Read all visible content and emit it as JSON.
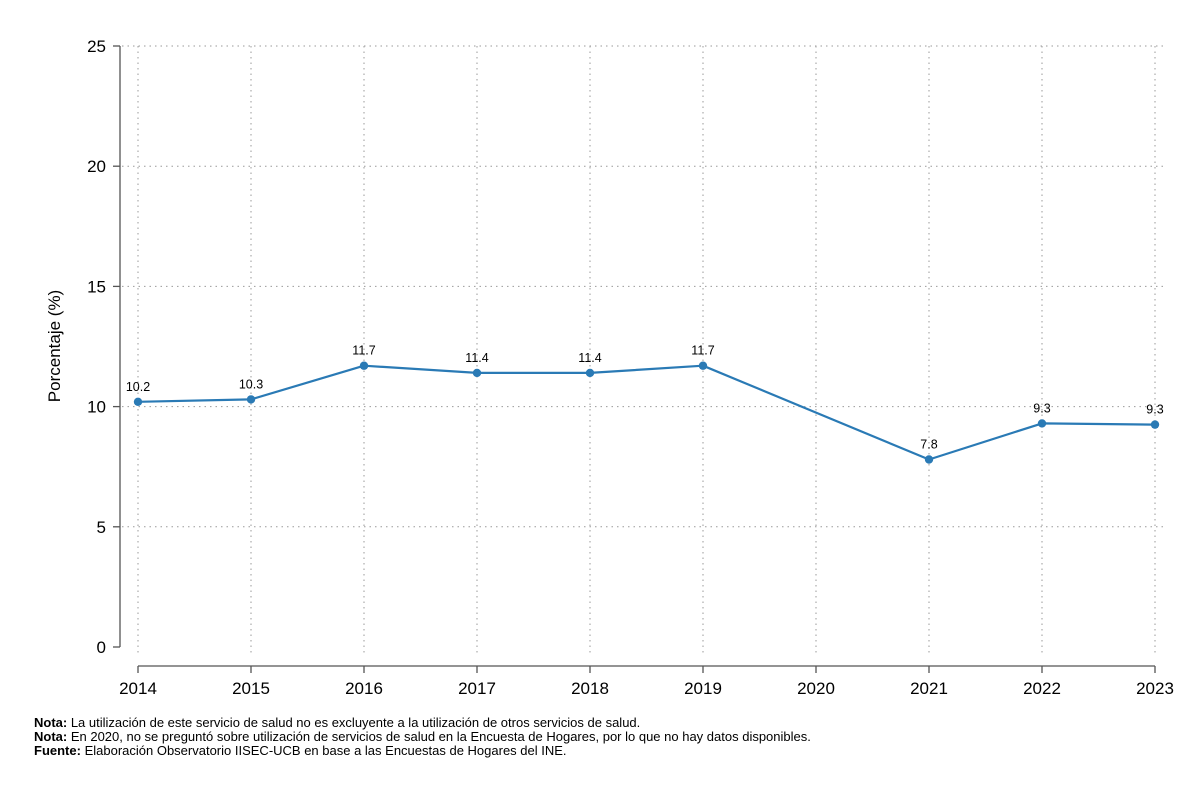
{
  "chart_data": {
    "type": "line",
    "title": "",
    "xlabel": "",
    "ylabel": "Porcentaje (%)",
    "ylim": [
      0,
      25
    ],
    "yticks": [
      0,
      5,
      10,
      15,
      20,
      25
    ],
    "x": [
      2014,
      2015,
      2016,
      2017,
      2018,
      2019,
      2020,
      2021,
      2022,
      2023
    ],
    "x_tick_labels": [
      "2014",
      "2015",
      "2016",
      "2017",
      "2018",
      "2019",
      "2020",
      "2021",
      "2022",
      "2023"
    ],
    "grid": true,
    "line_color": "#2a7ab5",
    "series": [
      {
        "values": [
          10.2,
          10.3,
          11.7,
          11.4,
          11.4,
          11.7,
          null,
          7.8,
          9.3,
          9.25
        ],
        "data_labels": [
          "10.2",
          "10.3",
          "11.7",
          "11.4",
          "11.4",
          "11.7",
          "",
          "7.8",
          "9.3",
          "9.3"
        ]
      }
    ]
  },
  "notes": [
    {
      "label": "Nota:",
      "text": " La utilización de este servicio de salud no es excluyente a la utilización de otros servicios de salud."
    },
    {
      "label": "Nota:",
      "text": " En 2020, no se preguntó sobre utilización de servicios de salud en la Encuesta de Hogares, por lo que no hay datos disponibles."
    },
    {
      "label": "Fuente:",
      "text": " Elaboración Observatorio IISEC-UCB en base a las Encuestas de Hogares del INE."
    }
  ]
}
